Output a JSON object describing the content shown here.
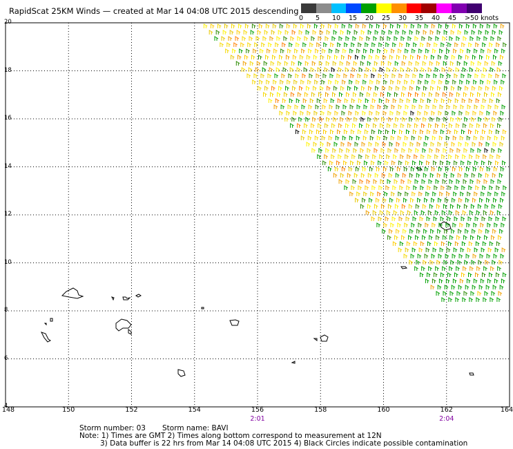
{
  "title": "RapidScat 25KM Winds — created at Mar 14 04:08 UTC 2015 descending",
  "legend": {
    "labels": [
      "0",
      "5",
      "10",
      "15",
      "20",
      "25",
      "30",
      "35",
      "40",
      "45",
      ">50 knots"
    ],
    "colors": [
      "#3a3a3a",
      "#8c8c8c",
      "#00c0ff",
      "#0048ff",
      "#00a000",
      "#ffff00",
      "#ff9000",
      "#ff0000",
      "#a00000",
      "#ff00ff",
      "#8000b0",
      "#400070"
    ]
  },
  "axes": {
    "x_ticks": [
      "148",
      "150",
      "152",
      "154",
      "156",
      "158",
      "160",
      "162",
      "164"
    ],
    "y_ticks": [
      "20",
      "18",
      "16",
      "14",
      "12",
      "10",
      "8",
      "6",
      "4"
    ],
    "lon_range": [
      148,
      164
    ],
    "lat_range": [
      4,
      20
    ],
    "grid": true
  },
  "times": [
    {
      "label": "2:01",
      "lon": 156
    },
    {
      "label": "2:04",
      "lon": 162
    }
  ],
  "storm": {
    "number_line": "Storm number: 03",
    "name_line": "Storm name: BAVI"
  },
  "notes": {
    "line1": "Note: 1) Times are GMT  2) Times along bottom correspond to measurement at 12N",
    "line2": "3) Data buffer is 22 hrs from Mar 14 04:08 UTC 2015  4) Black Circles indicate possible contamination"
  }
}
